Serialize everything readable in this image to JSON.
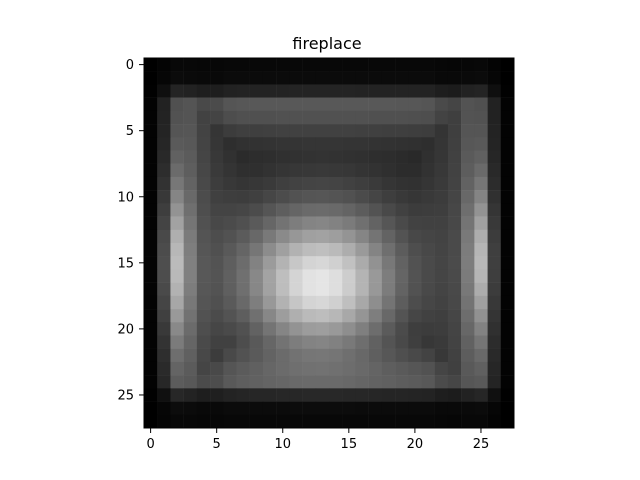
{
  "chart_data": {
    "type": "heatmap",
    "title": "fireplace",
    "xlabel": "",
    "ylabel": "",
    "colormap": "gray",
    "rows": 28,
    "cols": 28,
    "xlim": [
      -0.5,
      27.5
    ],
    "ylim": [
      27.5,
      -0.5
    ],
    "x_ticks": [
      0,
      5,
      10,
      15,
      20,
      25
    ],
    "y_ticks": [
      0,
      5,
      10,
      15,
      20,
      25
    ],
    "grid": false,
    "estimated_structure": "dark border; brighter side columns near x=1-2 and x=24-25; broad bright central region peaking near x=12-14, y=16-18",
    "z": []
  }
}
